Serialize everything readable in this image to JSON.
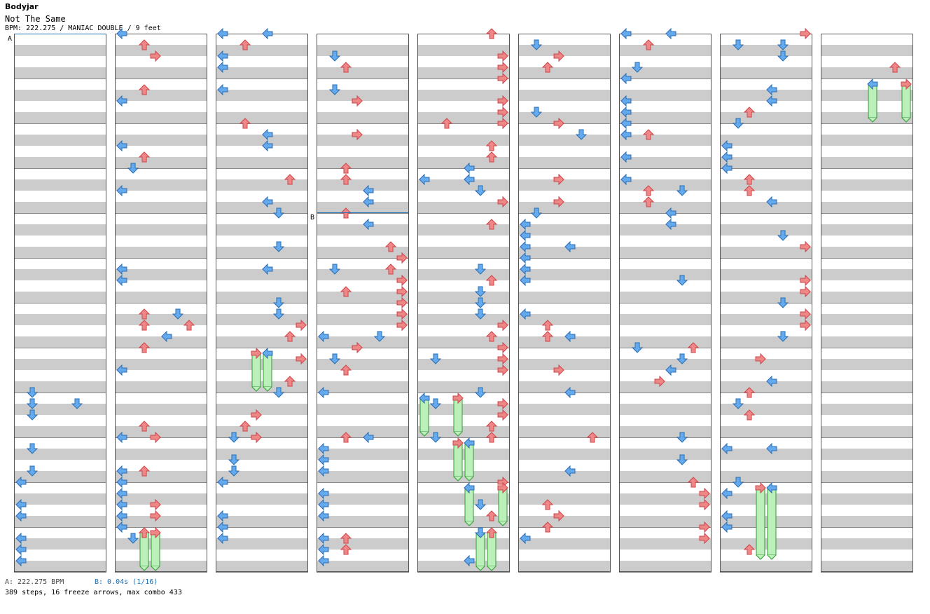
{
  "header": {
    "artist": "Bodyjar",
    "title": "Not The Same",
    "bpm_line": "BPM: 222.275 / MANIAC DOUBLE / 9 feet"
  },
  "markers": {
    "a": "A",
    "b": "B"
  },
  "footer": {
    "a_text": "A: 222.275 BPM",
    "b_text": "B: 0.04s (1/16)",
    "stats": "389 steps, 16 freeze arrows, max combo 433"
  },
  "colors": {
    "left_arrow": "#66aaee",
    "down_arrow": "#66aaee",
    "up_arrow": "#ee8888",
    "right_arrow": "#ee8888",
    "freeze": "#bbf0bb",
    "stripe": "#cccccc"
  },
  "note_icons": [
    "arrow-left-icon",
    "arrow-down-icon",
    "arrow-up-icon",
    "arrow-right-icon",
    "freeze-hold-icon"
  ],
  "seed": 7
}
